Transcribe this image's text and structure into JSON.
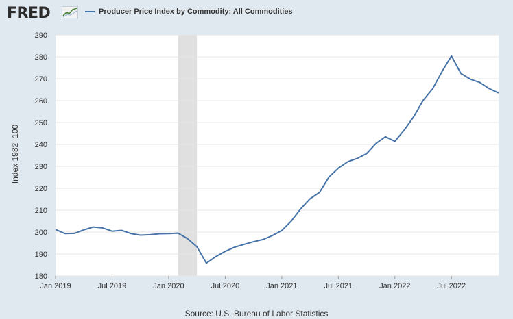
{
  "header": {
    "logo_text": "FRED",
    "logo_icon": "trend-line-icon",
    "legend_label": "Producer Price Index by Commodity: All Commodities"
  },
  "footer": {
    "source": "Source: U.S. Bureau of Labor Statistics"
  },
  "colors": {
    "series": "#4572a7",
    "recession": "#e0e0e0",
    "background": "#e1e9f0",
    "plot": "#ffffff"
  },
  "chart_data": {
    "type": "line",
    "title": "Producer Price Index by Commodity: All Commodities",
    "xlabel": "",
    "ylabel": "Index 1982=100",
    "ylim": [
      180,
      290
    ],
    "yticks": [
      180,
      190,
      200,
      210,
      220,
      230,
      240,
      250,
      260,
      270,
      280,
      290
    ],
    "xlim": [
      "2019-01",
      "2022-12"
    ],
    "xticks": [
      {
        "date": "2019-01",
        "label": "Jan 2019"
      },
      {
        "date": "2019-07",
        "label": "Jul 2019"
      },
      {
        "date": "2020-01",
        "label": "Jan 2020"
      },
      {
        "date": "2020-07",
        "label": "Jul 2020"
      },
      {
        "date": "2021-01",
        "label": "Jan 2021"
      },
      {
        "date": "2021-07",
        "label": "Jul 2021"
      },
      {
        "date": "2022-01",
        "label": "Jan 2022"
      },
      {
        "date": "2022-07",
        "label": "Jul 2022"
      }
    ],
    "recession": {
      "start": "2020-02",
      "end": "2020-04"
    },
    "grid": true,
    "series": [
      {
        "name": "Producer Price Index by Commodity: All Commodities",
        "x": [
          "2019-01",
          "2019-02",
          "2019-03",
          "2019-04",
          "2019-05",
          "2019-06",
          "2019-07",
          "2019-08",
          "2019-09",
          "2019-10",
          "2019-11",
          "2019-12",
          "2020-01",
          "2020-02",
          "2020-03",
          "2020-04",
          "2020-05",
          "2020-06",
          "2020-07",
          "2020-08",
          "2020-09",
          "2020-10",
          "2020-11",
          "2020-12",
          "2021-01",
          "2021-02",
          "2021-03",
          "2021-04",
          "2021-05",
          "2021-06",
          "2021-07",
          "2021-08",
          "2021-09",
          "2021-10",
          "2021-11",
          "2021-12",
          "2022-01",
          "2022-02",
          "2022-03",
          "2022-04",
          "2022-05",
          "2022-06",
          "2022-07",
          "2022-08",
          "2022-09",
          "2022-10",
          "2022-11",
          "2022-12"
        ],
        "values": [
          201.2,
          199.3,
          199.4,
          201.0,
          202.3,
          201.9,
          200.4,
          200.8,
          199.3,
          198.6,
          198.8,
          199.2,
          199.3,
          199.5,
          197.0,
          193.3,
          185.8,
          188.8,
          191.2,
          193.1,
          194.4,
          195.6,
          196.6,
          198.4,
          200.7,
          205.0,
          210.6,
          215.2,
          218.1,
          225.1,
          229.2,
          232.1,
          233.6,
          235.8,
          240.5,
          243.5,
          241.4,
          246.6,
          252.7,
          260.2,
          265.4,
          273.3,
          280.4,
          272.4,
          269.8,
          268.3,
          265.5,
          263.5
        ]
      }
    ]
  }
}
